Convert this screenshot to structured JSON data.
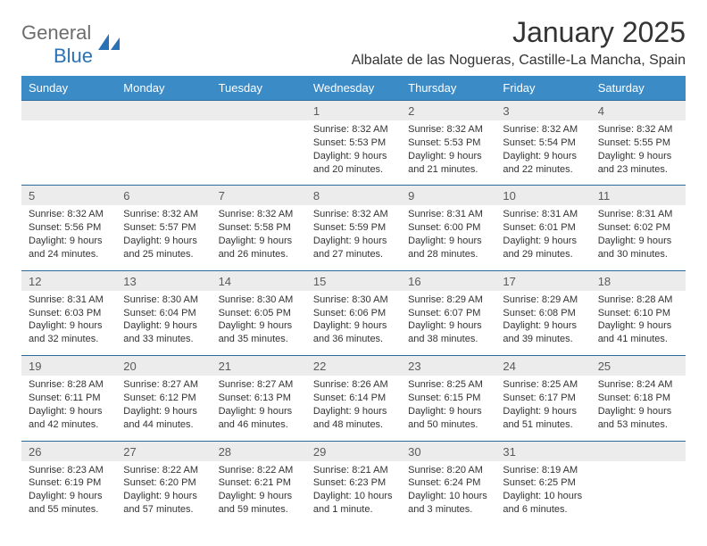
{
  "logo": {
    "part1": "General",
    "part2": "Blue"
  },
  "title": "January 2025",
  "location": "Albalate de las Nogueras, Castille-La Mancha, Spain",
  "weekday_header_bg": "#3b8bc7",
  "weekday_header_text": "#ffffff",
  "daynum_bg": "#ececec",
  "row_divider_color": "#2d6aa0",
  "weekdays": [
    "Sunday",
    "Monday",
    "Tuesday",
    "Wednesday",
    "Thursday",
    "Friday",
    "Saturday"
  ],
  "weeks": [
    {
      "days": [
        null,
        null,
        null,
        {
          "n": "1",
          "sunrise": "8:32 AM",
          "sunset": "5:53 PM",
          "dl": "9 hours and 20 minutes."
        },
        {
          "n": "2",
          "sunrise": "8:32 AM",
          "sunset": "5:53 PM",
          "dl": "9 hours and 21 minutes."
        },
        {
          "n": "3",
          "sunrise": "8:32 AM",
          "sunset": "5:54 PM",
          "dl": "9 hours and 22 minutes."
        },
        {
          "n": "4",
          "sunrise": "8:32 AM",
          "sunset": "5:55 PM",
          "dl": "9 hours and 23 minutes."
        }
      ]
    },
    {
      "days": [
        {
          "n": "5",
          "sunrise": "8:32 AM",
          "sunset": "5:56 PM",
          "dl": "9 hours and 24 minutes."
        },
        {
          "n": "6",
          "sunrise": "8:32 AM",
          "sunset": "5:57 PM",
          "dl": "9 hours and 25 minutes."
        },
        {
          "n": "7",
          "sunrise": "8:32 AM",
          "sunset": "5:58 PM",
          "dl": "9 hours and 26 minutes."
        },
        {
          "n": "8",
          "sunrise": "8:32 AM",
          "sunset": "5:59 PM",
          "dl": "9 hours and 27 minutes."
        },
        {
          "n": "9",
          "sunrise": "8:31 AM",
          "sunset": "6:00 PM",
          "dl": "9 hours and 28 minutes."
        },
        {
          "n": "10",
          "sunrise": "8:31 AM",
          "sunset": "6:01 PM",
          "dl": "9 hours and 29 minutes."
        },
        {
          "n": "11",
          "sunrise": "8:31 AM",
          "sunset": "6:02 PM",
          "dl": "9 hours and 30 minutes."
        }
      ]
    },
    {
      "days": [
        {
          "n": "12",
          "sunrise": "8:31 AM",
          "sunset": "6:03 PM",
          "dl": "9 hours and 32 minutes."
        },
        {
          "n": "13",
          "sunrise": "8:30 AM",
          "sunset": "6:04 PM",
          "dl": "9 hours and 33 minutes."
        },
        {
          "n": "14",
          "sunrise": "8:30 AM",
          "sunset": "6:05 PM",
          "dl": "9 hours and 35 minutes."
        },
        {
          "n": "15",
          "sunrise": "8:30 AM",
          "sunset": "6:06 PM",
          "dl": "9 hours and 36 minutes."
        },
        {
          "n": "16",
          "sunrise": "8:29 AM",
          "sunset": "6:07 PM",
          "dl": "9 hours and 38 minutes."
        },
        {
          "n": "17",
          "sunrise": "8:29 AM",
          "sunset": "6:08 PM",
          "dl": "9 hours and 39 minutes."
        },
        {
          "n": "18",
          "sunrise": "8:28 AM",
          "sunset": "6:10 PM",
          "dl": "9 hours and 41 minutes."
        }
      ]
    },
    {
      "days": [
        {
          "n": "19",
          "sunrise": "8:28 AM",
          "sunset": "6:11 PM",
          "dl": "9 hours and 42 minutes."
        },
        {
          "n": "20",
          "sunrise": "8:27 AM",
          "sunset": "6:12 PM",
          "dl": "9 hours and 44 minutes."
        },
        {
          "n": "21",
          "sunrise": "8:27 AM",
          "sunset": "6:13 PM",
          "dl": "9 hours and 46 minutes."
        },
        {
          "n": "22",
          "sunrise": "8:26 AM",
          "sunset": "6:14 PM",
          "dl": "9 hours and 48 minutes."
        },
        {
          "n": "23",
          "sunrise": "8:25 AM",
          "sunset": "6:15 PM",
          "dl": "9 hours and 50 minutes."
        },
        {
          "n": "24",
          "sunrise": "8:25 AM",
          "sunset": "6:17 PM",
          "dl": "9 hours and 51 minutes."
        },
        {
          "n": "25",
          "sunrise": "8:24 AM",
          "sunset": "6:18 PM",
          "dl": "9 hours and 53 minutes."
        }
      ]
    },
    {
      "days": [
        {
          "n": "26",
          "sunrise": "8:23 AM",
          "sunset": "6:19 PM",
          "dl": "9 hours and 55 minutes."
        },
        {
          "n": "27",
          "sunrise": "8:22 AM",
          "sunset": "6:20 PM",
          "dl": "9 hours and 57 minutes."
        },
        {
          "n": "28",
          "sunrise": "8:22 AM",
          "sunset": "6:21 PM",
          "dl": "9 hours and 59 minutes."
        },
        {
          "n": "29",
          "sunrise": "8:21 AM",
          "sunset": "6:23 PM",
          "dl": "10 hours and 1 minute."
        },
        {
          "n": "30",
          "sunrise": "8:20 AM",
          "sunset": "6:24 PM",
          "dl": "10 hours and 3 minutes."
        },
        {
          "n": "31",
          "sunrise": "8:19 AM",
          "sunset": "6:25 PM",
          "dl": "10 hours and 6 minutes."
        },
        null
      ]
    }
  ]
}
